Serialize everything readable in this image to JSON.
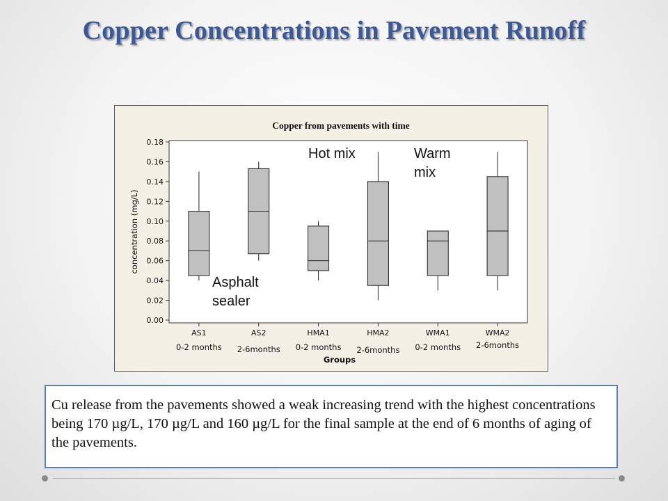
{
  "slide": {
    "title": "Copper Concentrations in Pavement Runoff",
    "caption": "Cu release from the pavements showed a weak increasing trend with the highest concentrations being 170 µg/L, 170 µg/L and 160 µg/L for the final sample at the end of 6 months of aging of the pavements."
  },
  "annotations": {
    "asphalt_line1": "Asphalt",
    "asphalt_line2": "sealer",
    "hot": "Hot mix",
    "warm_line1": "Warm",
    "warm_line2": "mix"
  },
  "colors": {
    "title": "#3b5998",
    "box_fill": "#c0c0c0",
    "figure_bg": "#f4f0e6",
    "plot_bg": "#ffffff",
    "caption_border": "#5b7fb5"
  },
  "chart_data": {
    "type": "boxplot",
    "title": "Copper from pavements with time",
    "xlabel": "Groups",
    "ylabel": "concentration (mg/L)",
    "ylim": [
      0,
      0.18
    ],
    "yticks": [
      "0.00",
      "0.02",
      "0.04",
      "0.06",
      "0.08",
      "0.10",
      "0.12",
      "0.14",
      "0.16",
      "0.18"
    ],
    "grid": false,
    "categories": [
      "AS1",
      "AS2",
      "HMA1",
      "HMA2",
      "WMA1",
      "WMA2"
    ],
    "sublabels": [
      "0-2 months",
      "2-6months",
      "0-2 months",
      "2-6months",
      "0-2 months",
      "2-6months"
    ],
    "boxes": [
      {
        "min": 0.04,
        "q1": 0.045,
        "median": 0.07,
        "q3": 0.11,
        "max": 0.15
      },
      {
        "min": 0.06,
        "q1": 0.067,
        "median": 0.11,
        "q3": 0.153,
        "max": 0.16
      },
      {
        "min": 0.04,
        "q1": 0.05,
        "median": 0.06,
        "q3": 0.095,
        "max": 0.1
      },
      {
        "min": 0.02,
        "q1": 0.035,
        "median": 0.08,
        "q3": 0.14,
        "max": 0.17
      },
      {
        "min": 0.03,
        "q1": 0.045,
        "median": 0.08,
        "q3": 0.09,
        "max": 0.09
      },
      {
        "min": 0.03,
        "q1": 0.045,
        "median": 0.09,
        "q3": 0.145,
        "max": 0.17
      }
    ]
  }
}
